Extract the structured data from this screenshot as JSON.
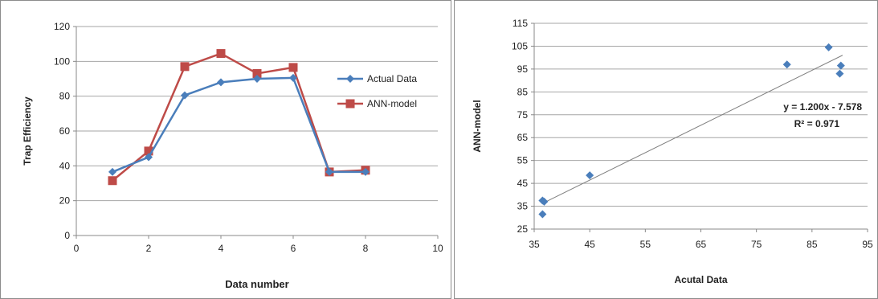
{
  "chart_data": [
    {
      "type": "line",
      "xlabel": "Data number",
      "ylabel": "Trap Efficiency",
      "xlim": [
        0,
        10
      ],
      "ylim": [
        0,
        120
      ],
      "xticks": [
        "0",
        "2",
        "4",
        "6",
        "8",
        "10"
      ],
      "yticks": [
        "0",
        "20",
        "40",
        "60",
        "80",
        "100",
        "120"
      ],
      "grid": "horizontal",
      "legend": "right",
      "x": [
        1,
        2,
        3,
        4,
        5,
        6,
        7,
        8
      ],
      "series": [
        {
          "name": "Actual Data",
          "marker": "diamond",
          "color": "#4a7ebb",
          "values": [
            36.5,
            45,
            80.5,
            88,
            90,
            90.5,
            36.5,
            36.5
          ]
        },
        {
          "name": "ANN-model",
          "marker": "square",
          "color": "#be4b48",
          "values": [
            31.5,
            48.5,
            97,
            104.5,
            93,
            96.5,
            36.5,
            37.5
          ]
        }
      ]
    },
    {
      "type": "scatter",
      "xlabel": "Acutal Data",
      "ylabel": "ANN-model",
      "xlim": [
        35,
        95
      ],
      "ylim": [
        25,
        115
      ],
      "xticks": [
        "35",
        "45",
        "55",
        "65",
        "75",
        "85",
        "95"
      ],
      "yticks": [
        "25",
        "35",
        "45",
        "55",
        "65",
        "75",
        "85",
        "95",
        "105",
        "115"
      ],
      "grid": "horizontal",
      "color": "#4a7ebb",
      "points": [
        {
          "x": 36.5,
          "y": 31.5
        },
        {
          "x": 36.5,
          "y": 37.5
        },
        {
          "x": 36.8,
          "y": 37
        },
        {
          "x": 45,
          "y": 48.5
        },
        {
          "x": 80.5,
          "y": 97
        },
        {
          "x": 88,
          "y": 104.5
        },
        {
          "x": 90,
          "y": 93
        },
        {
          "x": 90.2,
          "y": 96.5
        }
      ],
      "trendline": {
        "slope": 1.2,
        "intercept": -7.578,
        "x_range": [
          36.5,
          90.5
        ]
      },
      "annotations": [
        "y = 1.200x - 7.578",
        "R² = 0.971"
      ]
    }
  ]
}
